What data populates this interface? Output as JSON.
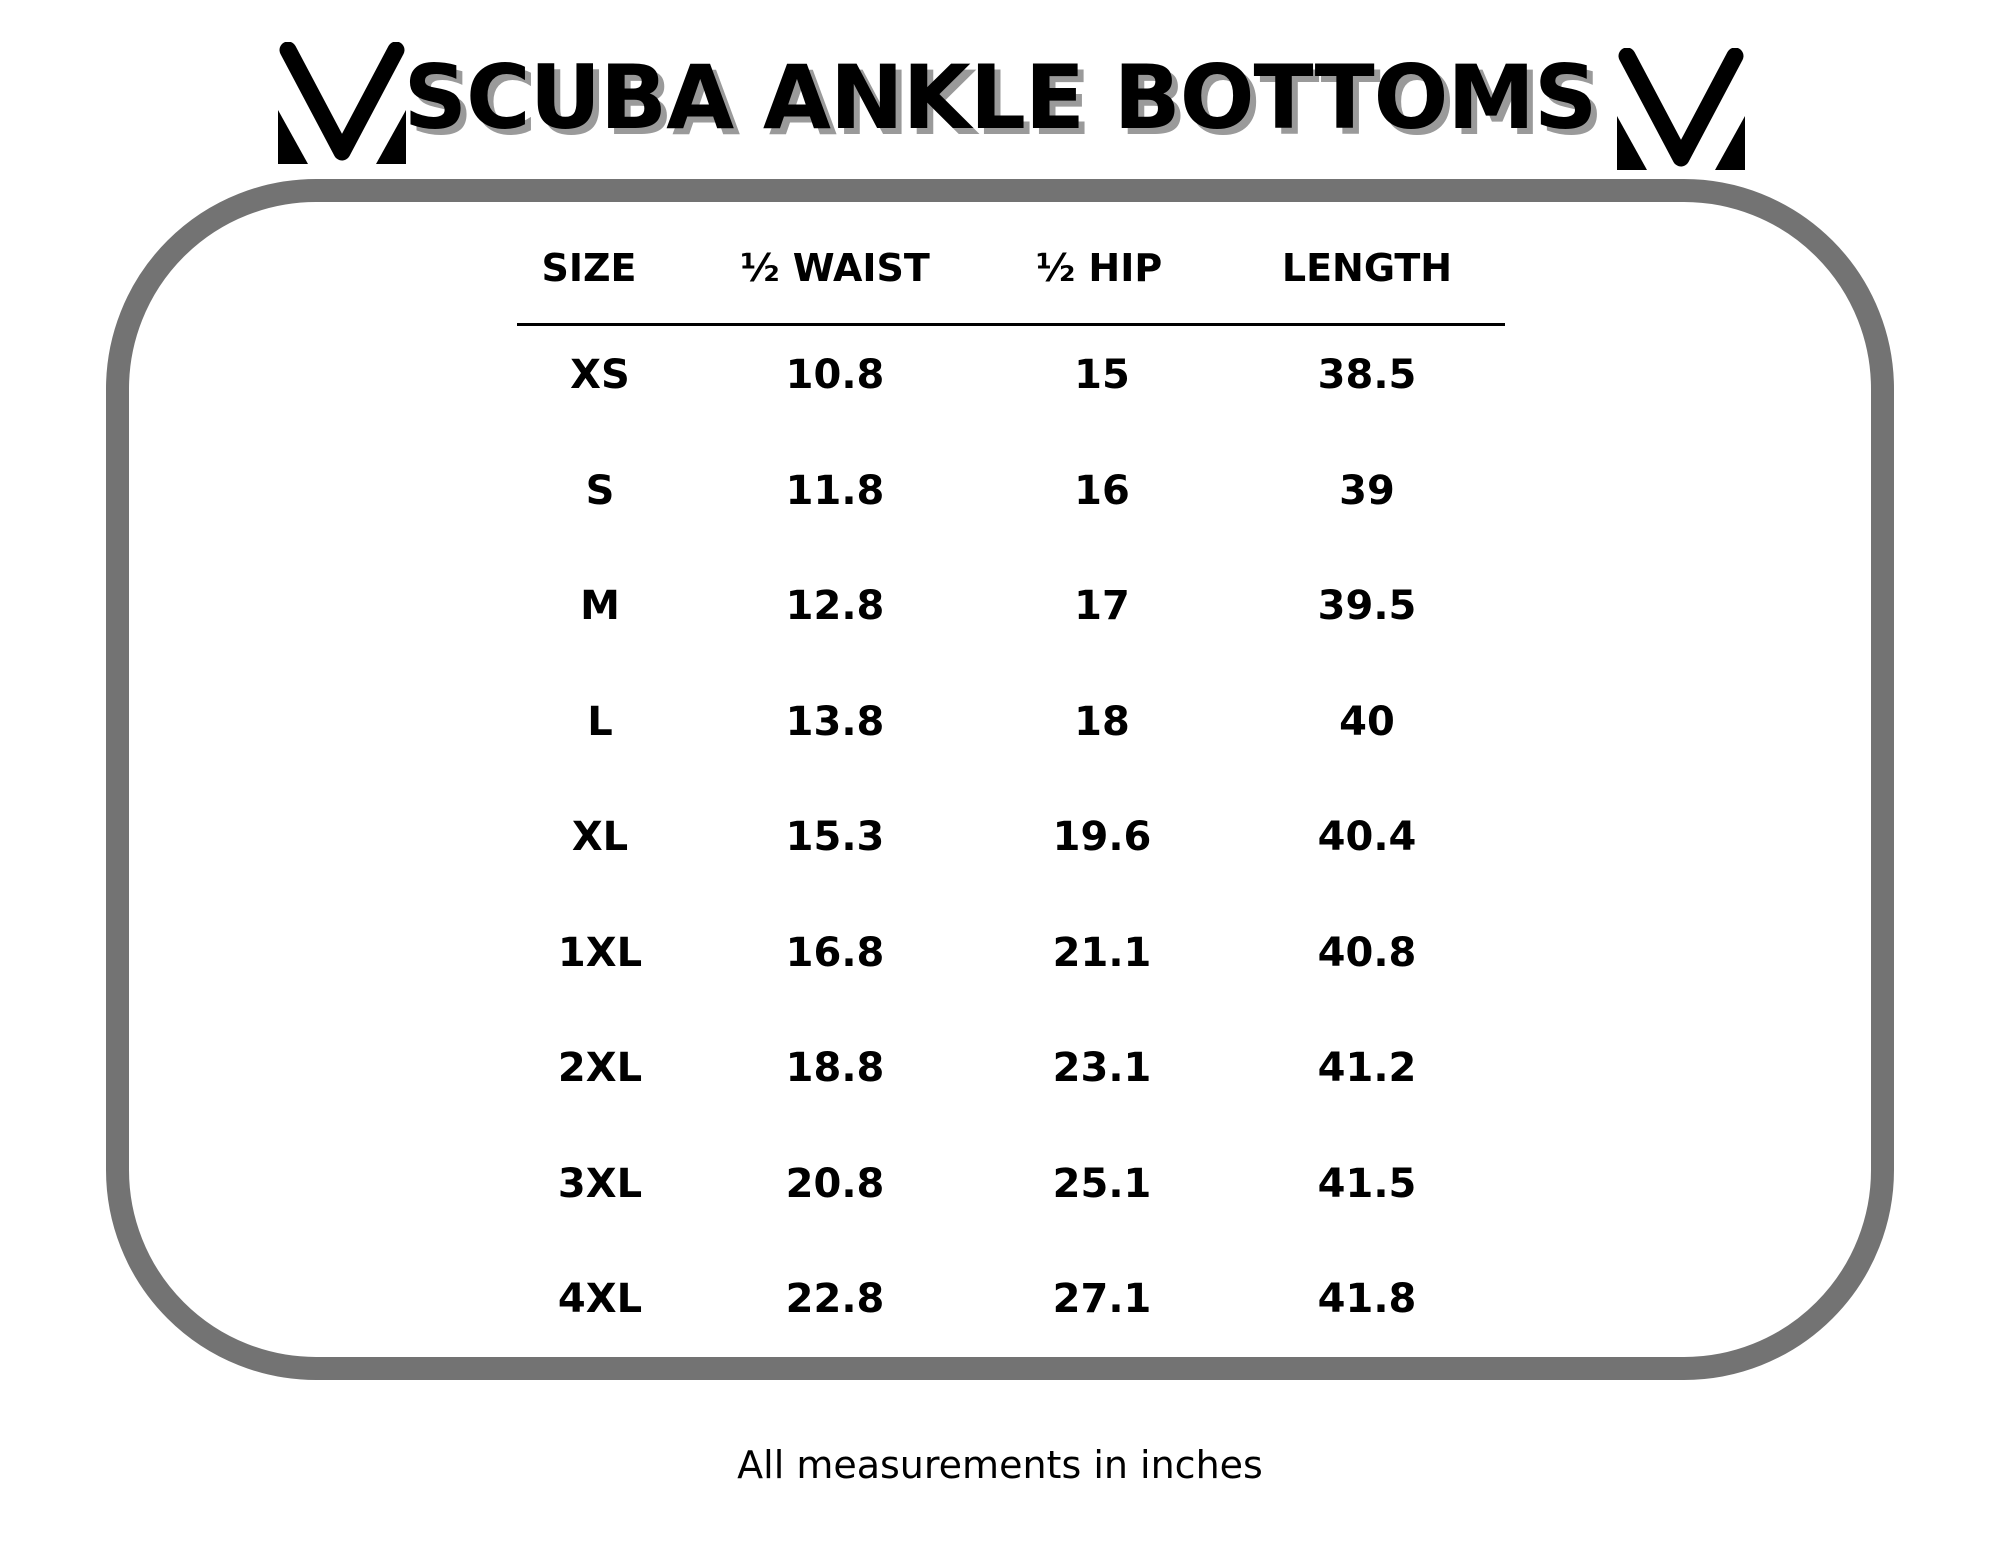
{
  "title": "SCUBA ANKLE BOTTOMS",
  "logo_icon": "brand-v-logo",
  "colors": {
    "frame": "#737373",
    "title_shadow": "#9a9a9a",
    "text": "#000000"
  },
  "table": {
    "headers": [
      "SIZE",
      "½ WAIST",
      "½ HIP",
      "LENGTH"
    ],
    "rows": [
      [
        "XS",
        "10.8",
        "15",
        "38.5"
      ],
      [
        "S",
        "11.8",
        "16",
        "39"
      ],
      [
        "M",
        "12.8",
        "17",
        "39.5"
      ],
      [
        "L",
        "13.8",
        "18",
        "40"
      ],
      [
        "XL",
        "15.3",
        "19.6",
        "40.4"
      ],
      [
        "1XL",
        "16.8",
        "21.1",
        "40.8"
      ],
      [
        "2XL",
        "18.8",
        "23.1",
        "41.2"
      ],
      [
        "3XL",
        "20.8",
        "25.1",
        "41.5"
      ],
      [
        "4XL",
        "22.8",
        "27.1",
        "41.8"
      ]
    ]
  },
  "footer": "All measurements in inches"
}
